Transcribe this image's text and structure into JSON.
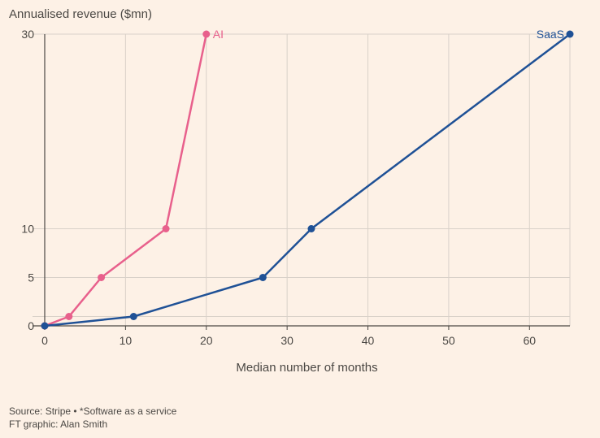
{
  "chart_data": {
    "type": "line",
    "ylabel": "Annualised revenue ($mn)",
    "xlabel": "Median number of months",
    "xlim": [
      0,
      65
    ],
    "ylim": [
      0,
      30
    ],
    "x_ticks": [
      0,
      10,
      20,
      30,
      40,
      50,
      60
    ],
    "y_ticks": [
      0,
      5,
      10,
      30
    ],
    "y_breaks": [
      0,
      1,
      5,
      10,
      30
    ],
    "grid": true,
    "series": [
      {
        "name": "AI",
        "color": "#e8608c",
        "x": [
          0,
          3,
          7,
          15,
          20
        ],
        "y": [
          0,
          1,
          5,
          10,
          30
        ]
      },
      {
        "name": "SaaS",
        "color": "#1f5196",
        "x": [
          0,
          11,
          27,
          33,
          65
        ],
        "y": [
          0,
          1,
          5,
          10,
          30
        ]
      }
    ]
  },
  "footer": {
    "source": "Source: Stripe • *Software as a service",
    "credit": "FT graphic: Alan Smith"
  }
}
